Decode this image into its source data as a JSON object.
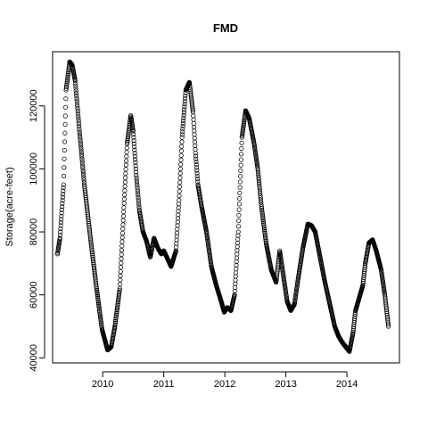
{
  "chart_data": {
    "type": "scatter",
    "title": "FMD",
    "xlabel": "",
    "ylabel": "Storage(acre-feet)",
    "xlim": [
      2009.18,
      2014.86
    ],
    "ylim": [
      38400,
      137200
    ],
    "x_ticks": [
      2010,
      2011,
      2012,
      2013,
      2014
    ],
    "x_tick_labels": [
      "2010",
      "2011",
      "2012",
      "2013",
      "2014"
    ],
    "y_ticks": [
      40000,
      60000,
      80000,
      100000,
      120000
    ],
    "y_tick_labels": [
      "40000",
      "60000",
      "80000",
      "100000",
      "120000"
    ],
    "grid": false,
    "legend": "none",
    "marker": "open-circle",
    "color": "#000000",
    "curve_knots": {
      "x": [
        2009.26,
        2009.3,
        2009.36,
        2009.4,
        2009.46,
        2009.5,
        2009.55,
        2009.62,
        2009.7,
        2009.8,
        2009.9,
        2009.99,
        2010.08,
        2010.14,
        2010.2,
        2010.28,
        2010.34,
        2010.4,
        2010.46,
        2010.5,
        2010.55,
        2010.6,
        2010.66,
        2010.72,
        2010.78,
        2010.84,
        2010.9,
        2010.96,
        2011.0,
        2011.05,
        2011.12,
        2011.2,
        2011.25,
        2011.3,
        2011.36,
        2011.42,
        2011.48,
        2011.52,
        2011.56,
        2011.62,
        2011.7,
        2011.78,
        2011.86,
        2011.94,
        2011.99,
        2012.04,
        2012.1,
        2012.16,
        2012.22,
        2012.28,
        2012.34,
        2012.4,
        2012.44,
        2012.48,
        2012.54,
        2012.6,
        2012.68,
        2012.76,
        2012.84,
        2012.9,
        2012.96,
        2013.02,
        2013.08,
        2013.14,
        2013.2,
        2013.28,
        2013.36,
        2013.42,
        2013.48,
        2013.56,
        2013.64,
        2013.72,
        2013.8,
        2013.86,
        2013.92,
        2013.98,
        2014.04,
        2014.1,
        2014.14,
        2014.2,
        2014.26,
        2014.3,
        2014.36,
        2014.42,
        2014.48,
        2014.56,
        2014.62,
        2014.68
      ],
      "y": [
        73000,
        78000,
        95000,
        125000,
        134000,
        133000,
        128000,
        112000,
        95000,
        78000,
        62000,
        49000,
        42500,
        43500,
        50000,
        62000,
        85000,
        108000,
        117000,
        112000,
        98000,
        87000,
        80000,
        77000,
        72000,
        78000,
        75000,
        73000,
        74000,
        72000,
        69000,
        74000,
        90000,
        110000,
        125000,
        127500,
        118000,
        105000,
        95000,
        88000,
        80000,
        69000,
        63000,
        58000,
        54500,
        56000,
        55000,
        60000,
        80000,
        110000,
        118500,
        116000,
        112000,
        108000,
        100000,
        88000,
        76000,
        68000,
        64000,
        74000,
        66000,
        58000,
        55000,
        57000,
        65000,
        75000,
        82500,
        82000,
        80000,
        72000,
        64000,
        57000,
        50000,
        47000,
        45000,
        43500,
        42000,
        48000,
        55000,
        59000,
        63000,
        70000,
        76500,
        77500,
        74000,
        68000,
        60000,
        50000
      ]
    },
    "point_spacing_years": 0.0035
  }
}
